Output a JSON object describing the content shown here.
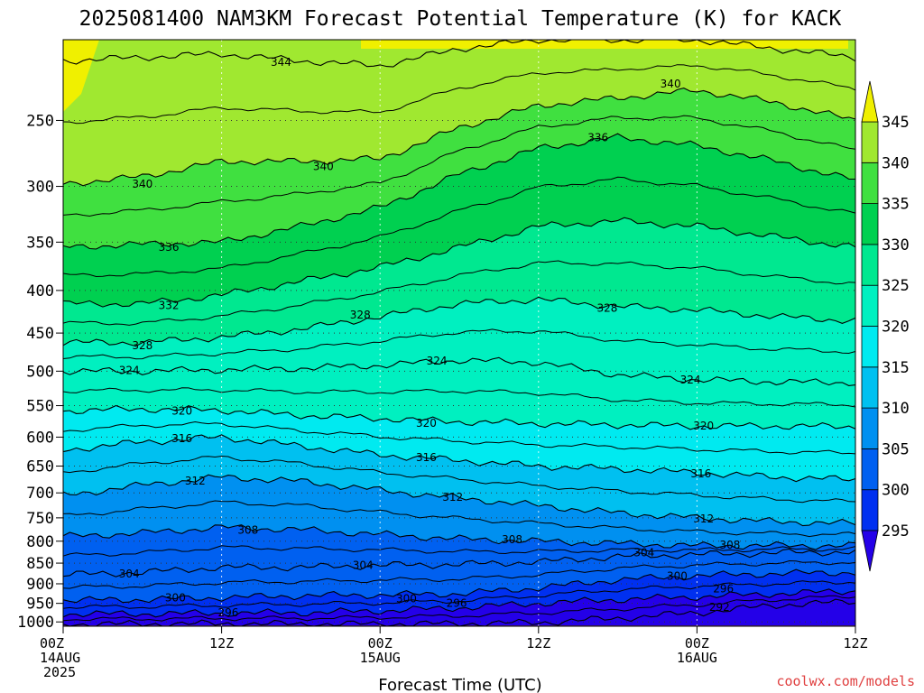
{
  "chart_data": {
    "type": "heatmap",
    "title": "2025081400 NAM3KM Forecast Potential Temperature (K) for KACK",
    "xlabel": "Forecast Time (UTC)",
    "ylabel": "",
    "credit": "coolwx.com/models",
    "x_ticks": [
      {
        "hours": 0,
        "lines": [
          "00Z",
          "14AUG",
          "2025"
        ]
      },
      {
        "hours": 12,
        "lines": [
          "12Z"
        ]
      },
      {
        "hours": 24,
        "lines": [
          "00Z",
          "15AUG"
        ]
      },
      {
        "hours": 36,
        "lines": [
          "12Z"
        ]
      },
      {
        "hours": 48,
        "lines": [
          "00Z",
          "16AUG"
        ]
      },
      {
        "hours": 60,
        "lines": [
          "12Z"
        ]
      }
    ],
    "xlim": [
      0,
      60
    ],
    "y_ticks": [
      250,
      300,
      350,
      400,
      450,
      500,
      550,
      600,
      650,
      700,
      750,
      800,
      850,
      900,
      950,
      1000
    ],
    "ylim": [
      1012,
      200
    ],
    "y_scale": "log-pressure",
    "colorbar": {
      "levels": [
        295,
        300,
        305,
        310,
        315,
        320,
        325,
        330,
        335,
        340,
        345
      ],
      "colors": [
        "#2400e8",
        "#0030f0",
        "#0060f0",
        "#0090f0",
        "#00c0f0",
        "#00eaf0",
        "#00f0c0",
        "#00e890",
        "#00d050",
        "#40e040",
        "#a0e830",
        "#f0f000"
      ]
    },
    "contour_interval": 4,
    "contour_labels": [
      {
        "value": "344",
        "hours": 16.5,
        "p": 213
      },
      {
        "value": "340",
        "hours": 46,
        "p": 226
      },
      {
        "value": "336",
        "hours": 40.5,
        "p": 262
      },
      {
        "value": "340",
        "hours": 19.7,
        "p": 284
      },
      {
        "value": "340",
        "hours": 6.0,
        "p": 298
      },
      {
        "value": "336",
        "hours": 8.0,
        "p": 355
      },
      {
        "value": "332",
        "hours": 8.0,
        "p": 417
      },
      {
        "value": "328",
        "hours": 22.5,
        "p": 428
      },
      {
        "value": "328",
        "hours": 41.2,
        "p": 420
      },
      {
        "value": "328",
        "hours": 6.0,
        "p": 466
      },
      {
        "value": "324",
        "hours": 28.3,
        "p": 486
      },
      {
        "value": "324",
        "hours": 5.0,
        "p": 499
      },
      {
        "value": "324",
        "hours": 47.5,
        "p": 512
      },
      {
        "value": "320",
        "hours": 9.0,
        "p": 558
      },
      {
        "value": "320",
        "hours": 27.5,
        "p": 577
      },
      {
        "value": "320",
        "hours": 48.5,
        "p": 582
      },
      {
        "value": "316",
        "hours": 9.0,
        "p": 602
      },
      {
        "value": "316",
        "hours": 27.5,
        "p": 635
      },
      {
        "value": "316",
        "hours": 48.3,
        "p": 664
      },
      {
        "value": "312",
        "hours": 10.0,
        "p": 677
      },
      {
        "value": "312",
        "hours": 29.5,
        "p": 708
      },
      {
        "value": "312",
        "hours": 48.5,
        "p": 752
      },
      {
        "value": "308",
        "hours": 14.0,
        "p": 776
      },
      {
        "value": "308",
        "hours": 34.0,
        "p": 796
      },
      {
        "value": "308",
        "hours": 50.5,
        "p": 809
      },
      {
        "value": "304",
        "hours": 22.7,
        "p": 855
      },
      {
        "value": "304",
        "hours": 44.0,
        "p": 826
      },
      {
        "value": "304",
        "hours": 5.0,
        "p": 876
      },
      {
        "value": "300",
        "hours": 46.5,
        "p": 881
      },
      {
        "value": "300",
        "hours": 8.5,
        "p": 936
      },
      {
        "value": "300",
        "hours": 26.0,
        "p": 938
      },
      {
        "value": "296",
        "hours": 29.8,
        "p": 950
      },
      {
        "value": "296",
        "hours": 12.5,
        "p": 975
      },
      {
        "value": "296",
        "hours": 50.0,
        "p": 913
      },
      {
        "value": "292",
        "hours": 49.7,
        "p": 960
      }
    ],
    "isentropes_K": [
      292,
      296,
      300,
      304,
      308,
      312,
      316,
      320,
      324,
      328,
      332,
      336,
      340,
      344
    ],
    "isentrope_pressure_by_hour": {
      "hours": [
        0,
        6,
        12,
        18,
        24,
        30,
        36,
        42,
        48,
        54,
        60
      ],
      "292": [
        1006,
        1006,
        1005,
        1006,
        1006,
        1005,
        1002,
        990,
        975,
        955,
        945
      ],
      "296": [
        978,
        978,
        976,
        975,
        970,
        962,
        950,
        940,
        933,
        925,
        918
      ],
      "300": [
        942,
        940,
        935,
        930,
        928,
        925,
        910,
        890,
        880,
        875,
        872
      ],
      "304": [
        878,
        872,
        860,
        860,
        855,
        853,
        847,
        835,
        830,
        826,
        824
      ],
      "308": [
        790,
        782,
        770,
        775,
        785,
        795,
        800,
        805,
        810,
        810,
        810
      ],
      "312": [
        705,
        685,
        670,
        678,
        695,
        710,
        725,
        740,
        750,
        758,
        762
      ],
      "316": [
        622,
        608,
        600,
        615,
        630,
        640,
        650,
        655,
        662,
        670,
        675
      ],
      "320": [
        558,
        555,
        557,
        565,
        570,
        575,
        578,
        580,
        582,
        582,
        583
      ],
      "324": [
        500,
        500,
        498,
        496,
        492,
        485,
        488,
        505,
        512,
        515,
        516
      ],
      "328": [
        462,
        462,
        455,
        445,
        430,
        415,
        410,
        418,
        422,
        430,
        435
      ],
      "332": [
        415,
        415,
        405,
        390,
        375,
        355,
        335,
        330,
        335,
        345,
        355
      ],
      "336": [
        355,
        352,
        350,
        335,
        318,
        290,
        270,
        262,
        268,
        280,
        295
      ],
      "340": [
        298,
        292,
        280,
        280,
        278,
        255,
        240,
        235,
        230,
        238,
        250
      ],
      "344": [
        212,
        210,
        208,
        212,
        215,
        205,
        200,
        200,
        200,
        205,
        210
      ]
    }
  }
}
